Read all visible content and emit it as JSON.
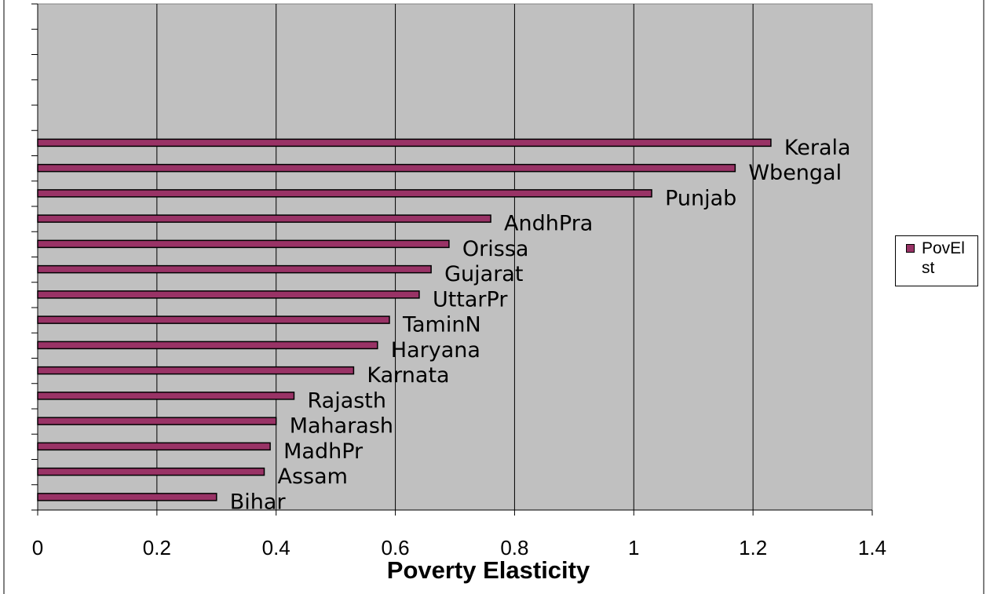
{
  "chart_data": {
    "type": "hbar",
    "x_label": "Poverty Elasticity",
    "categories": [
      null,
      null,
      null,
      null,
      null,
      "Kerala",
      "Wbengal",
      "Punjab",
      "AndhPra",
      "Orissa",
      "Gujarat",
      "UttarPr",
      "TaminN",
      "Haryana",
      "Karnata",
      "Rajasth",
      "Maharash",
      "MadhPr",
      "Assam",
      "Bihar"
    ],
    "series": [
      {
        "name": "PovElst",
        "color": "#993366",
        "values": [
          null,
          null,
          null,
          null,
          null,
          1.23,
          1.17,
          1.03,
          0.76,
          0.69,
          0.66,
          0.64,
          0.59,
          0.57,
          0.53,
          0.43,
          0.4,
          0.39,
          0.38,
          0.3
        ]
      }
    ],
    "xlim": [
      0,
      1.4
    ],
    "xticks": [
      0,
      0.2,
      0.4,
      0.6,
      0.8,
      1,
      1.2,
      1.4
    ],
    "grid": true,
    "legend": "right"
  }
}
